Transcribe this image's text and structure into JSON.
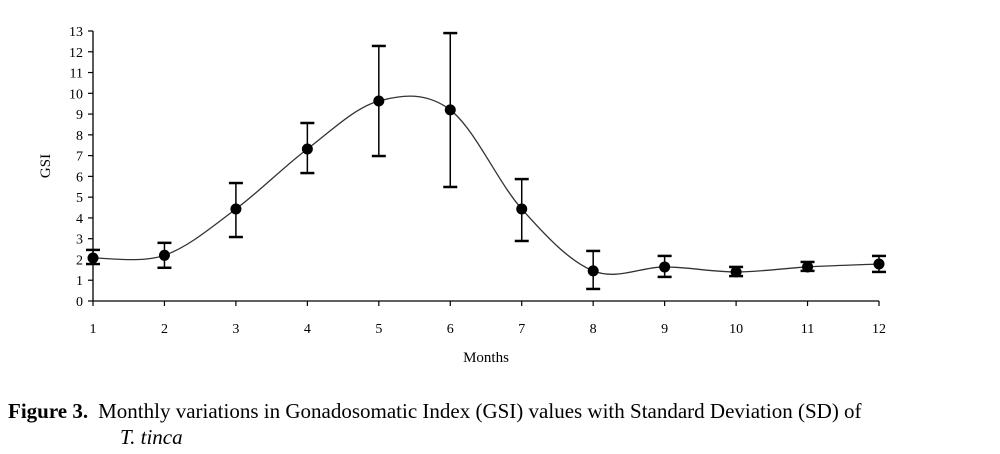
{
  "chart_data": {
    "type": "line",
    "title": "",
    "xlabel": "Months",
    "ylabel": "GSI",
    "xlim": [
      1,
      12
    ],
    "ylim": [
      0,
      13
    ],
    "x_ticks": [
      "1",
      "2",
      "3",
      "4",
      "5",
      "6",
      "7",
      "8",
      "9",
      "10",
      "11",
      "12"
    ],
    "y_ticks": [
      "0",
      "1",
      "2",
      "3",
      "4",
      "5",
      "6",
      "7",
      "8",
      "9",
      "10",
      "11",
      "12",
      "13"
    ],
    "grid": false,
    "smooth": true,
    "series": [
      {
        "name": "GSI",
        "x": [
          1,
          2,
          3,
          4,
          5,
          6,
          7,
          8,
          9,
          10,
          11,
          12
        ],
        "y": [
          2.07,
          2.2,
          4.43,
          7.32,
          9.63,
          9.2,
          4.43,
          1.45,
          1.64,
          1.4,
          1.64,
          1.78
        ],
        "error_upper": [
          2.46,
          2.8,
          5.68,
          8.57,
          12.28,
          12.9,
          5.87,
          2.41,
          2.17,
          1.64,
          1.88,
          2.17
        ],
        "error_lower": [
          1.78,
          1.6,
          3.08,
          6.16,
          6.98,
          5.49,
          2.89,
          0.58,
          1.16,
          1.2,
          1.45,
          1.4
        ]
      }
    ]
  },
  "caption": {
    "figure_label": "Figure 3.",
    "text": "Monthly variations in Gonadosomatic Index (GSI) values with Standard Deviation (SD) of",
    "species": "T. tinca"
  }
}
